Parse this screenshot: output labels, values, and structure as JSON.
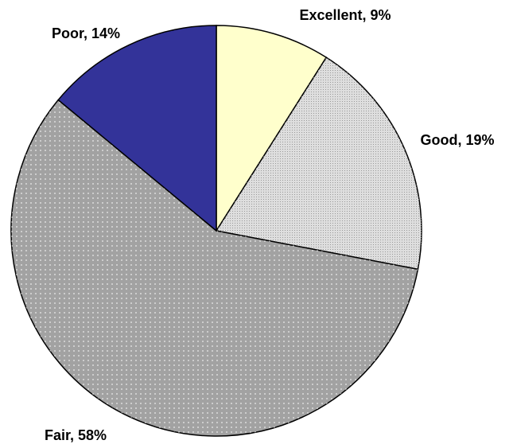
{
  "chart_data": {
    "type": "pie",
    "categories": [
      "Excellent",
      "Good",
      "Fair",
      "Poor"
    ],
    "values": [
      9,
      19,
      58,
      14
    ],
    "value_labels": [
      "9%",
      "19%",
      "58%",
      "14%"
    ],
    "colors": [
      "#ffffcc",
      "#dedede",
      "#a2a2a2",
      "#333399"
    ]
  }
}
